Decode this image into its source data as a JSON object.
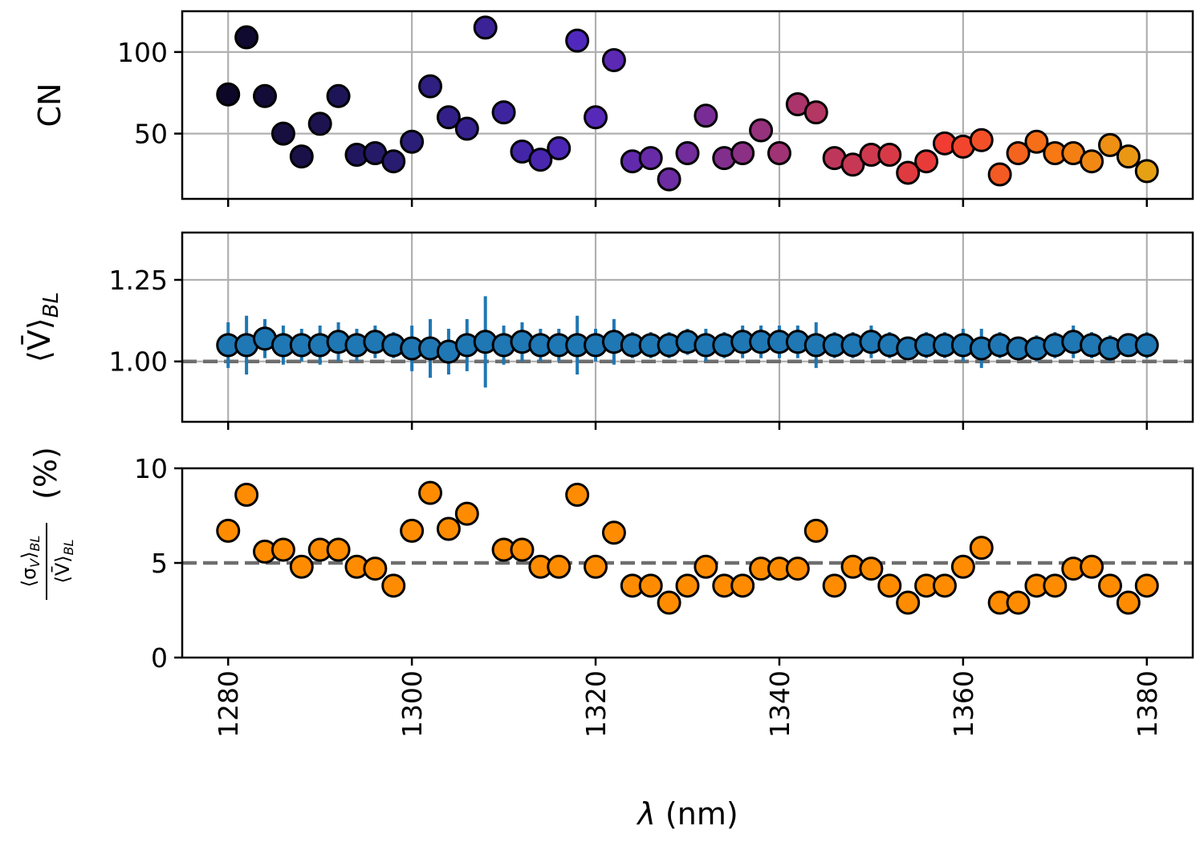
{
  "x_axis": {
    "label_symbol": "λ",
    "label_unit": " (nm)",
    "ticks": [
      "1280",
      "1300",
      "1320",
      "1340",
      "1360",
      "1380"
    ]
  },
  "colors": {
    "vbar_series": "#1f77b4",
    "ratio_series": "#ff8c00",
    "reference_line": "#6e6e6e"
  },
  "chart_data": [
    {
      "type": "scatter",
      "panel": "top",
      "ylabel": "CN",
      "xlim": [
        1275,
        1385
      ],
      "ylim": [
        10,
        125
      ],
      "yticks": [
        "50",
        "100"
      ],
      "grid": true,
      "colormap": "plasma-dark (black → purple → red → orange)",
      "x": [
        1280,
        1282,
        1284,
        1286,
        1288,
        1290,
        1292,
        1294,
        1296,
        1298,
        1300,
        1302,
        1304,
        1306,
        1308,
        1310,
        1312,
        1314,
        1316,
        1318,
        1320,
        1322,
        1324,
        1326,
        1328,
        1330,
        1332,
        1334,
        1336,
        1338,
        1340,
        1342,
        1344,
        1346,
        1348,
        1350,
        1352,
        1354,
        1356,
        1358,
        1360,
        1362,
        1364,
        1366,
        1368,
        1370,
        1372,
        1374,
        1376,
        1378,
        1380
      ],
      "y": [
        74,
        109,
        73,
        50,
        36,
        56,
        73,
        37,
        38,
        33,
        45,
        79,
        60,
        53,
        115,
        63,
        39,
        34,
        41,
        107,
        60,
        95,
        33,
        35,
        22,
        38,
        61,
        35,
        38,
        52,
        38,
        68,
        63,
        35,
        31,
        37,
        37,
        26,
        33,
        44,
        42,
        46,
        25,
        38,
        45,
        38,
        38,
        33,
        43,
        36,
        27
      ]
    },
    {
      "type": "scatter",
      "panel": "middle",
      "ylabel_main": "⟨V̄⟩",
      "ylabel_sub": "BL",
      "xlim": [
        1275,
        1385
      ],
      "ylim": [
        0.815,
        1.395
      ],
      "yticks": [
        "1.00",
        "1.25"
      ],
      "grid": true,
      "reference_line": 1.0,
      "x": [
        1280,
        1282,
        1284,
        1286,
        1288,
        1290,
        1292,
        1294,
        1296,
        1298,
        1300,
        1302,
        1304,
        1306,
        1308,
        1310,
        1312,
        1314,
        1316,
        1318,
        1320,
        1322,
        1324,
        1326,
        1328,
        1330,
        1332,
        1334,
        1336,
        1338,
        1340,
        1342,
        1344,
        1346,
        1348,
        1350,
        1352,
        1354,
        1356,
        1358,
        1360,
        1362,
        1364,
        1366,
        1368,
        1370,
        1372,
        1374,
        1376,
        1378,
        1380
      ],
      "y": [
        1.05,
        1.05,
        1.07,
        1.05,
        1.05,
        1.05,
        1.06,
        1.05,
        1.06,
        1.05,
        1.04,
        1.04,
        1.03,
        1.05,
        1.06,
        1.05,
        1.06,
        1.05,
        1.05,
        1.05,
        1.05,
        1.06,
        1.05,
        1.05,
        1.05,
        1.06,
        1.05,
        1.05,
        1.06,
        1.06,
        1.06,
        1.06,
        1.05,
        1.05,
        1.05,
        1.06,
        1.05,
        1.04,
        1.05,
        1.05,
        1.05,
        1.04,
        1.05,
        1.04,
        1.04,
        1.05,
        1.06,
        1.05,
        1.04,
        1.05,
        1.05
      ],
      "yerr": [
        0.07,
        0.09,
        0.06,
        0.06,
        0.05,
        0.06,
        0.06,
        0.05,
        0.05,
        0.04,
        0.07,
        0.09,
        0.07,
        0.08,
        0.14,
        0.06,
        0.06,
        0.05,
        0.05,
        0.09,
        0.05,
        0.07,
        0.04,
        0.04,
        0.04,
        0.04,
        0.05,
        0.04,
        0.05,
        0.05,
        0.05,
        0.05,
        0.07,
        0.04,
        0.04,
        0.05,
        0.04,
        0.03,
        0.04,
        0.04,
        0.05,
        0.06,
        0.04,
        0.03,
        0.04,
        0.04,
        0.05,
        0.04,
        0.04,
        0.03,
        0.04
      ]
    },
    {
      "type": "scatter",
      "panel": "bottom",
      "ylabel_num": "⟨σ",
      "ylabel_num_sub": "V",
      "ylabel_num_close": "⟩",
      "ylabel_num_sub2": "BL",
      "ylabel_den": "⟨V̄⟩",
      "ylabel_den_sub": "BL",
      "ylabel_unit": "(%)",
      "xlim": [
        1275,
        1385
      ],
      "ylim": [
        0,
        10
      ],
      "yticks": [
        "0",
        "5",
        "10"
      ],
      "grid": false,
      "reference_line": 5,
      "x": [
        1280,
        1282,
        1284,
        1286,
        1288,
        1290,
        1292,
        1294,
        1296,
        1298,
        1300,
        1302,
        1304,
        1306,
        1308,
        1310,
        1312,
        1314,
        1316,
        1318,
        1320,
        1322,
        1324,
        1326,
        1328,
        1330,
        1332,
        1334,
        1336,
        1338,
        1340,
        1342,
        1344,
        1346,
        1348,
        1350,
        1352,
        1354,
        1356,
        1358,
        1360,
        1362,
        1364,
        1366,
        1368,
        1370,
        1372,
        1374,
        1376,
        1378,
        1380
      ],
      "y": [
        6.7,
        8.6,
        5.6,
        5.7,
        4.8,
        5.7,
        5.7,
        4.8,
        4.7,
        3.8,
        6.7,
        8.7,
        6.8,
        7.6,
        null,
        5.7,
        5.7,
        4.8,
        4.8,
        8.6,
        4.8,
        6.6,
        3.8,
        3.8,
        2.9,
        3.8,
        4.8,
        3.8,
        3.8,
        4.7,
        4.7,
        4.7,
        6.7,
        3.8,
        4.8,
        4.7,
        3.8,
        2.9,
        3.8,
        3.8,
        4.8,
        5.8,
        2.9,
        2.9,
        3.8,
        3.8,
        4.7,
        4.8,
        3.8,
        2.9,
        3.8
      ]
    }
  ]
}
